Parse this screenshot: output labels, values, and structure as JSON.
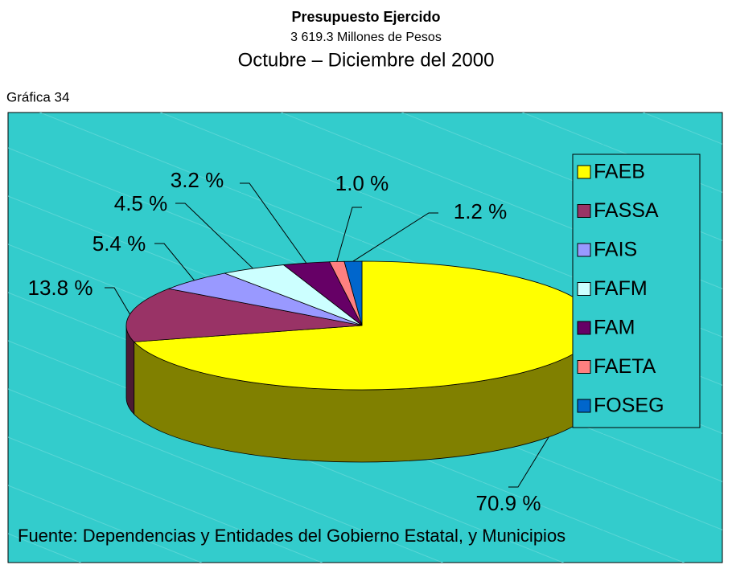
{
  "chart_data": {
    "type": "pie",
    "title": "Presupuesto Ejercido",
    "subtitle": "3 619.3 Millones de Pesos",
    "period": "Octubre – Diciembre del 2000",
    "figure_label": "Gráfica 34",
    "source": "Fuente: Dependencias y Entidades del Gobierno Estatal, y Municipios",
    "categories": [
      "FAEB",
      "FASSA",
      "FAIS",
      "FAFM",
      "FAM",
      "FAETA",
      "FOSEG"
    ],
    "values": [
      70.9,
      13.8,
      5.4,
      4.5,
      3.2,
      1.0,
      1.2
    ],
    "value_labels": [
      "70.9 %",
      "13.8 %",
      "5.4 %",
      "4.5 %",
      "3.2 %",
      "1.0 %",
      "1.2 %"
    ],
    "colors": [
      "#ffff00",
      "#993366",
      "#9999ff",
      "#ccffff",
      "#660066",
      "#ff8080",
      "#0066cc"
    ],
    "legend": "right"
  }
}
